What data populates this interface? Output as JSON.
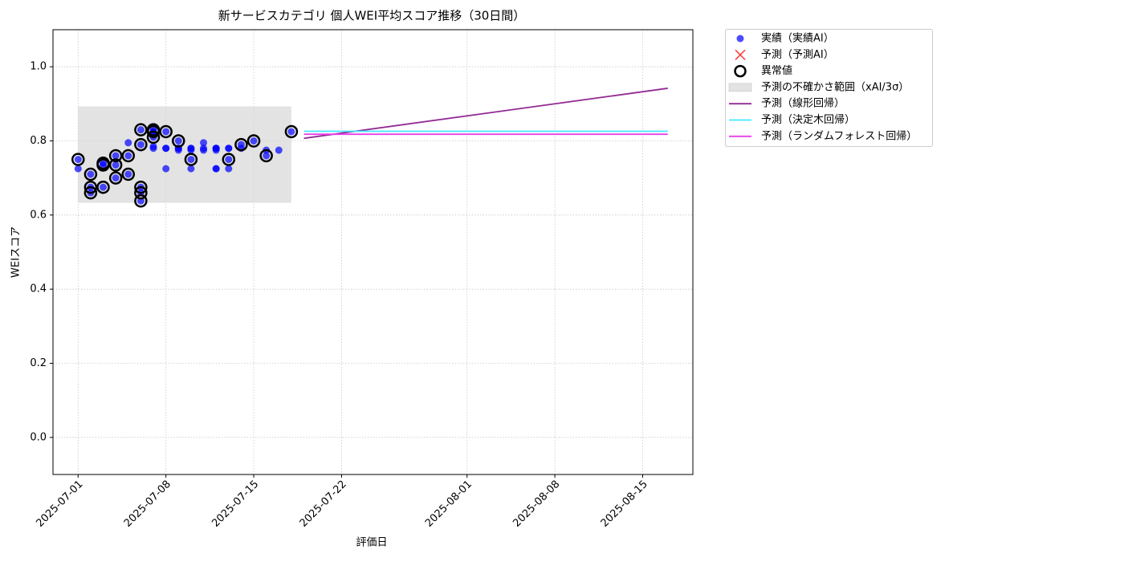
{
  "chart_data": {
    "type": "scatter",
    "title": "新サービスカテゴリ 個人WEI平均スコア推移（30日間）",
    "x_label": "評価日",
    "y_label": "WEIスコア",
    "xlim": [
      "2025-06-29",
      "2025-08-19"
    ],
    "xticks": [
      "2025-07-01",
      "2025-07-08",
      "2025-07-15",
      "2025-07-22",
      "2025-08-01",
      "2025-08-08",
      "2025-08-15"
    ],
    "ylim": [
      -0.1,
      1.1
    ],
    "yticks": [
      {
        "value": 0,
        "label": "0.0"
      },
      {
        "value": 0.2,
        "label": "0.2"
      },
      {
        "value": 0.4,
        "label": "0.4"
      },
      {
        "value": 0.6,
        "label": "0.6"
      },
      {
        "value": 0.8,
        "label": "0.8"
      },
      {
        "value": 1,
        "label": "1.0"
      }
    ],
    "grid": true,
    "legend": "outside-upper-right",
    "series": [
      {
        "name": "実績（実績AI）",
        "type": "scatter",
        "marker": "dot",
        "color": "#0000ff",
        "x": [
          "2025-07-01",
          "2025-07-01",
          "2025-07-02",
          "2025-07-02",
          "2025-07-02",
          "2025-07-03",
          "2025-07-03",
          "2025-07-03",
          "2025-07-04",
          "2025-07-04",
          "2025-07-04",
          "2025-07-05",
          "2025-07-05",
          "2025-07-05",
          "2025-07-06",
          "2025-07-06",
          "2025-07-06",
          "2025-07-06",
          "2025-07-06",
          "2025-07-07",
          "2025-07-07",
          "2025-07-07",
          "2025-07-07",
          "2025-07-07",
          "2025-07-07",
          "2025-07-08",
          "2025-07-08",
          "2025-07-08",
          "2025-07-08",
          "2025-07-09",
          "2025-07-09",
          "2025-07-09",
          "2025-07-09",
          "2025-07-10",
          "2025-07-10",
          "2025-07-10",
          "2025-07-10",
          "2025-07-10",
          "2025-07-11",
          "2025-07-11",
          "2025-07-11",
          "2025-07-12",
          "2025-07-12",
          "2025-07-12",
          "2025-07-12",
          "2025-07-12",
          "2025-07-12",
          "2025-07-13",
          "2025-07-13",
          "2025-07-13",
          "2025-07-13",
          "2025-07-14",
          "2025-07-14",
          "2025-07-15",
          "2025-07-16",
          "2025-07-16",
          "2025-07-17",
          "2025-07-18"
        ],
        "values": [
          0.75,
          0.725,
          0.66,
          0.71,
          0.675,
          0.735,
          0.74,
          0.675,
          0.7,
          0.76,
          0.735,
          0.71,
          0.76,
          0.795,
          0.638,
          0.675,
          0.66,
          0.83,
          0.79,
          0.825,
          0.785,
          0.78,
          0.83,
          0.81,
          0.825,
          0.825,
          0.78,
          0.725,
          0.78,
          0.8,
          0.78,
          0.775,
          0.78,
          0.75,
          0.78,
          0.725,
          0.78,
          0.775,
          0.775,
          0.78,
          0.795,
          0.725,
          0.78,
          0.775,
          0.78,
          0.725,
          0.78,
          0.725,
          0.78,
          0.75,
          0.78,
          0.79,
          0.78,
          0.8,
          0.76,
          0.775,
          0.775,
          0.825
        ]
      },
      {
        "name": "予測（予測AI）",
        "type": "scatter",
        "marker": "x",
        "color": "#ff0000",
        "x": [],
        "values": []
      },
      {
        "name": "異常値",
        "type": "scatter",
        "marker": "ring",
        "color": "#000000",
        "x": [
          "2025-07-01",
          "2025-07-02",
          "2025-07-02",
          "2025-07-02",
          "2025-07-03",
          "2025-07-03",
          "2025-07-03",
          "2025-07-04",
          "2025-07-04",
          "2025-07-04",
          "2025-07-05",
          "2025-07-05",
          "2025-07-06",
          "2025-07-06",
          "2025-07-06",
          "2025-07-06",
          "2025-07-06",
          "2025-07-07",
          "2025-07-07",
          "2025-07-07",
          "2025-07-08",
          "2025-07-09",
          "2025-07-10",
          "2025-07-13",
          "2025-07-14",
          "2025-07-15",
          "2025-07-16",
          "2025-07-18"
        ],
        "values": [
          0.75,
          0.66,
          0.71,
          0.675,
          0.735,
          0.74,
          0.675,
          0.7,
          0.76,
          0.735,
          0.71,
          0.76,
          0.638,
          0.675,
          0.66,
          0.83,
          0.79,
          0.825,
          0.83,
          0.81,
          0.825,
          0.8,
          0.75,
          0.75,
          0.79,
          0.8,
          0.76,
          0.825
        ]
      },
      {
        "name": "予測の不確かさ範囲（xAI/3σ）",
        "type": "band",
        "color": "#d9d9d9",
        "x": [
          "2025-07-01",
          "2025-07-18"
        ],
        "values": [
          0.633,
          0.893
        ]
      },
      {
        "name": "予測（線形回帰）",
        "type": "line",
        "color": "#932a93",
        "x": [
          "2025-07-19",
          "2025-08-17"
        ],
        "values": [
          0.807,
          0.942
        ]
      },
      {
        "name": "予測（決定木回帰）",
        "type": "line",
        "color": "#40e8ff",
        "x": [
          "2025-07-19",
          "2025-08-17"
        ],
        "values": [
          0.826,
          0.826
        ]
      },
      {
        "name": "予測（ランダムフォレスト回帰）",
        "type": "line",
        "color": "#e83ee8",
        "x": [
          "2025-07-19",
          "2025-08-17"
        ],
        "values": [
          0.818,
          0.818
        ]
      }
    ]
  }
}
